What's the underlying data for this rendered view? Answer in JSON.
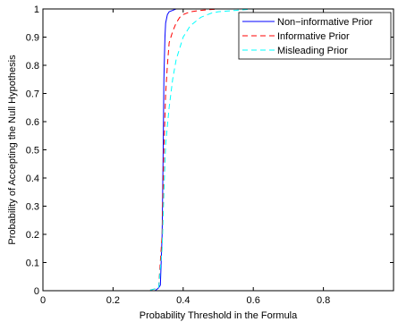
{
  "chart_data": {
    "type": "line",
    "xlabel": "Probability Threshold in the Formula",
    "ylabel": "Probability of Accepting the Null Hypothesis",
    "xlim": [
      0,
      1
    ],
    "ylim": [
      0,
      1
    ],
    "xticks": [
      0,
      0.2,
      0.4,
      0.6,
      0.8
    ],
    "xtick_labels": [
      "0",
      "0.2",
      "0.4",
      "0.6",
      "0.8"
    ],
    "yticks": [
      0,
      0.1,
      0.2,
      0.3,
      0.4,
      0.5,
      0.6,
      0.7,
      0.8,
      0.9,
      1
    ],
    "ytick_labels": [
      "0",
      "0.1",
      "0.2",
      "0.3",
      "0.4",
      "0.5",
      "0.6",
      "0.7",
      "0.8",
      "0.9",
      "1"
    ],
    "grid": false,
    "legend_position": "top-right",
    "series": [
      {
        "name": "Non−informative Prior",
        "color": "#0000ff",
        "style": "solid",
        "x": [
          0,
          0.2,
          0.3,
          0.32,
          0.33,
          0.335,
          0.34,
          0.343,
          0.345,
          0.348,
          0.35,
          0.355,
          0.36,
          0.37,
          0.38,
          0.4,
          0.5,
          1
        ],
        "y": [
          0,
          0,
          0,
          0,
          0.01,
          0.02,
          0.2,
          0.5,
          0.75,
          0.9,
          0.95,
          0.98,
          0.99,
          0.995,
          1,
          1,
          1,
          1
        ]
      },
      {
        "name": "Informative Prior",
        "color": "#ff0000",
        "style": "dashed",
        "x": [
          0,
          0.2,
          0.3,
          0.33,
          0.34,
          0.345,
          0.35,
          0.355,
          0.36,
          0.37,
          0.38,
          0.39,
          0.4,
          0.42,
          0.45,
          0.5,
          1
        ],
        "y": [
          0,
          0,
          0,
          0.01,
          0.2,
          0.5,
          0.7,
          0.8,
          0.88,
          0.92,
          0.95,
          0.97,
          0.98,
          0.99,
          0.995,
          1,
          1
        ]
      },
      {
        "name": "Misleading Prior",
        "color": "#00ffff",
        "style": "dashed",
        "x": [
          0,
          0.2,
          0.3,
          0.33,
          0.34,
          0.345,
          0.35,
          0.36,
          0.37,
          0.38,
          0.4,
          0.42,
          0.45,
          0.48,
          0.5,
          0.55,
          0.6,
          1
        ],
        "y": [
          0,
          0,
          0,
          0.01,
          0.15,
          0.35,
          0.52,
          0.65,
          0.75,
          0.82,
          0.9,
          0.94,
          0.97,
          0.985,
          0.99,
          0.995,
          1,
          1
        ]
      }
    ]
  }
}
